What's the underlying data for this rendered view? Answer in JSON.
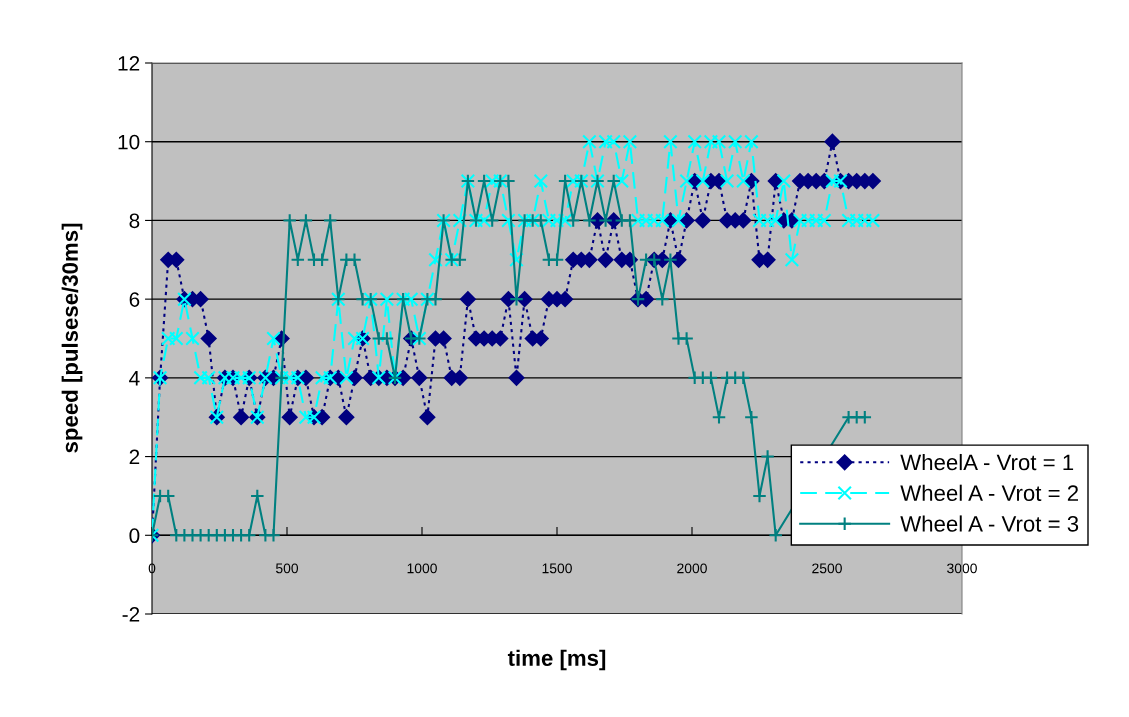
{
  "chart_data": {
    "type": "line",
    "xlabel": "time [ms]",
    "ylabel": "speed [pulsese/30ms]",
    "x": [
      0,
      30,
      60,
      90,
      120,
      150,
      180,
      210,
      240,
      270,
      300,
      330,
      360,
      390,
      420,
      450,
      480,
      510,
      540,
      570,
      600,
      630,
      660,
      690,
      720,
      750,
      780,
      810,
      840,
      870,
      900,
      930,
      960,
      990,
      1020,
      1050,
      1080,
      1110,
      1140,
      1170,
      1200,
      1230,
      1260,
      1290,
      1320,
      1350,
      1380,
      1410,
      1440,
      1470,
      1500,
      1530,
      1560,
      1590,
      1620,
      1650,
      1680,
      1710,
      1740,
      1770,
      1800,
      1830,
      1860,
      1890,
      1920,
      1950,
      1980,
      2010,
      2040,
      2070,
      2100,
      2130,
      2160,
      2190,
      2220,
      2250,
      2280,
      2310,
      2340,
      2370,
      2400,
      2430,
      2460,
      2490,
      2520,
      2550,
      2580,
      2610,
      2640,
      2670
    ],
    "series": [
      {
        "name": "WheelA - Vrot = 1",
        "color": "#000080",
        "marker": "diamond",
        "line_style": "dotted",
        "values": [
          0,
          4,
          7,
          7,
          6,
          6,
          6,
          5,
          3,
          4,
          4,
          3,
          4,
          3,
          4,
          4,
          5,
          3,
          4,
          4,
          3,
          3,
          4,
          4,
          3,
          4,
          5,
          4,
          4,
          4,
          4,
          4,
          5,
          4,
          3,
          5,
          5,
          4,
          4,
          6,
          5,
          5,
          5,
          5,
          6,
          4,
          6,
          5,
          5,
          6,
          6,
          6,
          7,
          7,
          7,
          8,
          7,
          8,
          7,
          7,
          6,
          6,
          7,
          7,
          8,
          7,
          8,
          9,
          8,
          9,
          9,
          8,
          8,
          8,
          9,
          7,
          7,
          9,
          8,
          8,
          9,
          9,
          9,
          9,
          10,
          9,
          9,
          9,
          9,
          9
        ]
      },
      {
        "name": "Wheel A - Vrot = 2",
        "color": "#00ffff",
        "marker": "cross",
        "line_style": "dashed",
        "values": [
          0,
          4,
          5,
          5,
          6,
          5,
          4,
          4,
          3,
          4,
          4,
          4,
          4,
          3,
          4,
          5,
          4,
          4,
          4,
          3,
          3,
          4,
          4,
          6,
          4,
          5,
          5,
          6,
          4,
          6,
          4,
          6,
          6,
          5,
          6,
          7,
          8,
          7,
          8,
          9,
          8,
          8,
          9,
          9,
          8,
          7,
          8,
          8,
          9,
          8,
          8,
          8,
          9,
          9,
          10,
          9,
          10,
          10,
          9,
          10,
          8,
          8,
          8,
          8,
          10,
          8,
          9,
          10,
          9,
          10,
          10,
          9,
          10,
          9,
          10,
          8,
          8,
          8,
          9,
          7,
          8,
          8,
          8,
          8,
          9,
          9,
          8,
          8,
          8,
          8
        ]
      },
      {
        "name": "Wheel A - Vrot = 3",
        "color": "#008080",
        "marker": "plus",
        "line_style": "solid",
        "values": [
          0,
          1,
          1,
          0,
          0,
          0,
          0,
          0,
          0,
          0,
          0,
          0,
          0,
          1,
          0,
          0,
          4,
          8,
          7,
          8,
          7,
          7,
          8,
          6,
          7,
          7,
          6,
          6,
          5,
          5,
          4,
          6,
          5,
          5,
          6,
          6,
          8,
          7,
          7,
          9,
          8,
          9,
          8,
          9,
          9,
          6,
          8,
          8,
          8,
          7,
          7,
          9,
          8,
          9,
          8,
          9,
          8,
          9,
          8,
          8,
          6,
          7,
          7,
          6,
          7,
          5,
          5,
          4,
          4,
          4,
          3,
          4,
          4,
          4,
          3,
          1,
          2,
          0,
          null,
          null,
          null,
          null,
          null,
          null,
          null,
          null,
          3,
          3,
          3,
          null
        ]
      }
    ],
    "xlim": [
      0,
      3000
    ],
    "xticks": [
      0,
      500,
      1000,
      1500,
      2000,
      2500,
      3000
    ],
    "ylim": [
      -2,
      12
    ],
    "yticks": [
      -2,
      0,
      2,
      4,
      6,
      8,
      10,
      12
    ],
    "grid": "y",
    "legend": "bottom right"
  }
}
